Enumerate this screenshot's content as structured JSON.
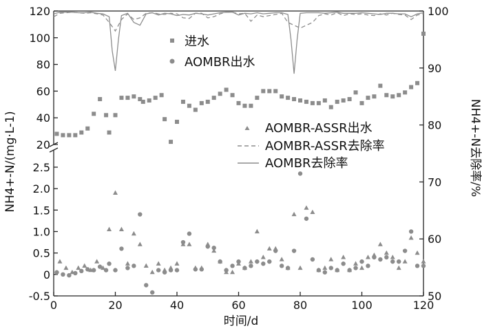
{
  "chart_data": {
    "type": "scatter",
    "xlabel": "时间/d",
    "ylabel_left": "NH4+-N/(mg·L-1)",
    "ylabel_right": "NH4+-N去除率/%",
    "xlim": [
      0,
      120
    ],
    "x_ticks": [
      "0",
      "20",
      "40",
      "60",
      "80",
      "100",
      "120"
    ],
    "left_upper_ticks": [
      "20",
      "40",
      "60",
      "80",
      "100",
      "120"
    ],
    "left_lower_ticks": [
      "-0.5",
      "0",
      "0.5",
      "1.0",
      "1.5",
      "2.0",
      "2.5"
    ],
    "right_ticks": [
      "50",
      "60",
      "70",
      "80",
      "90",
      "100"
    ],
    "ylim_left_upper": [
      20,
      120
    ],
    "ylim_left_lower": [
      -0.5,
      2.9
    ],
    "ylim_right": [
      50,
      100
    ],
    "axis_break": true,
    "grid": false,
    "legend_upper": [
      "进水",
      "AOMBR出水"
    ],
    "legend_lower": [
      "AOMBR-ASSR出水",
      "AOMBR-ASSR去除率",
      "AOMBR去除率"
    ],
    "series": [
      {
        "name": "进水",
        "marker": "square",
        "color": "#8c8c8c",
        "axis": "left_upper",
        "x": [
          1,
          3,
          5,
          7,
          9,
          11,
          13,
          15,
          17,
          18,
          20,
          22,
          24,
          26,
          28,
          29,
          31,
          33,
          35,
          36,
          38,
          40,
          42,
          44,
          46,
          48,
          50,
          52,
          54,
          56,
          58,
          60,
          62,
          64,
          66,
          68,
          70,
          72,
          74,
          76,
          78,
          80,
          82,
          84,
          86,
          88,
          90,
          92,
          94,
          96,
          98,
          100,
          102,
          104,
          106,
          108,
          110,
          112,
          114,
          116,
          118,
          120
        ],
        "y": [
          28,
          27,
          27,
          27,
          29,
          32,
          43,
          54,
          42,
          29,
          42,
          55,
          55,
          56,
          54,
          52,
          53,
          55,
          57,
          39,
          22,
          37,
          52,
          49,
          46,
          51,
          52,
          55,
          58,
          61,
          57,
          51,
          49,
          49,
          55,
          60,
          60,
          60,
          56,
          55,
          54,
          53,
          52,
          51,
          51,
          53,
          48,
          52,
          53,
          54,
          59,
          51,
          55,
          56,
          64,
          57,
          56,
          57,
          59,
          63,
          66,
          103
        ]
      },
      {
        "name": "AOMBR出水",
        "marker": "circle",
        "color": "#8c8c8c",
        "axis": "left_lower",
        "x": [
          1,
          3,
          5,
          7,
          9,
          11,
          13,
          15,
          17,
          18,
          20,
          22,
          24,
          26,
          28,
          30,
          32,
          34,
          36,
          38,
          40,
          42,
          44,
          46,
          48,
          50,
          52,
          54,
          56,
          58,
          60,
          62,
          64,
          66,
          68,
          70,
          72,
          74,
          76,
          78,
          80,
          82,
          84,
          86,
          88,
          90,
          92,
          94,
          96,
          98,
          100,
          102,
          104,
          106,
          108,
          110,
          112,
          114,
          116,
          118,
          120
        ],
        "y": [
          0.05,
          0.0,
          -0.02,
          0.03,
          0.08,
          0.12,
          0.1,
          0.18,
          0.1,
          0.25,
          0.1,
          0.6,
          0.15,
          0.2,
          1.4,
          -0.25,
          -0.42,
          0.1,
          0.05,
          0.1,
          0.1,
          0.75,
          0.95,
          0.12,
          0.12,
          0.65,
          0.62,
          0.3,
          0.1,
          0.2,
          0.3,
          0.15,
          0.2,
          0.3,
          0.25,
          0.3,
          0.55,
          0.2,
          0.15,
          0.55,
          2.35,
          1.3,
          0.35,
          0.1,
          0.05,
          0.15,
          0.1,
          0.25,
          0.1,
          0.15,
          0.3,
          0.2,
          0.4,
          0.35,
          0.4,
          0.3,
          0.3,
          0.55,
          1.0,
          0.2,
          0.2
        ]
      },
      {
        "name": "AOMBR-ASSR出水",
        "marker": "triangle",
        "color": "#8c8c8c",
        "axis": "left_lower",
        "x": [
          2,
          4,
          6,
          8,
          10,
          12,
          14,
          16,
          18,
          20,
          22,
          24,
          26,
          28,
          30,
          32,
          34,
          36,
          38,
          40,
          42,
          44,
          46,
          48,
          50,
          52,
          54,
          56,
          58,
          60,
          62,
          64,
          66,
          68,
          70,
          72,
          74,
          76,
          78,
          80,
          82,
          84,
          86,
          88,
          90,
          92,
          94,
          96,
          98,
          100,
          102,
          104,
          106,
          108,
          110,
          112,
          114,
          116,
          118,
          120
        ],
        "y": [
          0.3,
          0.15,
          0.05,
          0.15,
          0.2,
          0.1,
          0.3,
          0.15,
          1.05,
          1.9,
          1.05,
          0.25,
          0.95,
          0.7,
          0.2,
          0.05,
          0.25,
          0.1,
          0.15,
          0.25,
          0.7,
          0.7,
          0.15,
          0.15,
          0.7,
          0.55,
          0.3,
          0.05,
          0.05,
          0.25,
          0.15,
          0.3,
          1.0,
          0.4,
          0.6,
          0.6,
          0.35,
          0.15,
          1.4,
          0.15,
          1.55,
          1.45,
          0.1,
          0.15,
          0.35,
          0.1,
          0.4,
          0.1,
          0.25,
          0.15,
          0.4,
          0.45,
          0.7,
          0.5,
          0.4,
          0.15,
          0.3,
          0.85,
          0.5,
          0.3
        ]
      },
      {
        "name": "AOMBR-ASSR去除率",
        "line": "dashed",
        "color": "#8c8c8c",
        "axis": "right",
        "x": [
          0,
          2,
          4,
          6,
          8,
          10,
          12,
          14,
          16,
          18,
          20,
          22,
          24,
          26,
          28,
          30,
          32,
          34,
          36,
          38,
          40,
          42,
          44,
          46,
          48,
          50,
          52,
          54,
          56,
          58,
          60,
          62,
          64,
          66,
          68,
          70,
          72,
          74,
          76,
          78,
          80,
          82,
          84,
          86,
          88,
          90,
          92,
          94,
          96,
          98,
          100,
          102,
          104,
          106,
          108,
          110,
          112,
          114,
          116,
          118,
          120
        ],
        "y": [
          99.0,
          99.6,
          99.7,
          99.8,
          99.7,
          99.6,
          99.7,
          99.5,
          99.3,
          98.0,
          96.5,
          98.5,
          99.5,
          98.5,
          98.8,
          99.6,
          99.7,
          99.5,
          99.4,
          99.6,
          99.5,
          98.8,
          98.7,
          99.6,
          99.6,
          98.8,
          99.0,
          99.5,
          99.8,
          99.8,
          99.5,
          99.6,
          98.2,
          99.3,
          99.0,
          99.2,
          99.4,
          99.6,
          98.0,
          97.5,
          97.0,
          97.5,
          98.0,
          99.2,
          99.5,
          99.3,
          99.7,
          99.2,
          99.5,
          99.4,
          99.5,
          99.3,
          99.2,
          99.5,
          99.3,
          99.6,
          99.4,
          99.3,
          98.5,
          99.3,
          99.5
        ]
      },
      {
        "name": "AOMBR去除率",
        "line": "solid",
        "color": "#8c8c8c",
        "axis": "right",
        "x": [
          0,
          2,
          4,
          6,
          8,
          10,
          12,
          14,
          16,
          18,
          19,
          20,
          21,
          22,
          24,
          26,
          28,
          30,
          32,
          34,
          36,
          38,
          40,
          42,
          44,
          46,
          48,
          50,
          52,
          54,
          56,
          58,
          60,
          62,
          64,
          66,
          68,
          70,
          72,
          74,
          76,
          77,
          78,
          79,
          80,
          82,
          84,
          86,
          88,
          90,
          92,
          94,
          96,
          98,
          100,
          102,
          104,
          106,
          108,
          110,
          112,
          114,
          116,
          118,
          120
        ],
        "y": [
          99.5,
          99.8,
          99.8,
          99.8,
          99.7,
          99.7,
          99.8,
          99.6,
          99.5,
          99.0,
          93.0,
          89.5,
          95.0,
          99.2,
          99.6,
          98.0,
          97.5,
          99.5,
          99.7,
          99.3,
          99.6,
          99.5,
          99.2,
          99.4,
          99.3,
          99.6,
          99.5,
          99.3,
          99.5,
          99.7,
          99.8,
          99.8,
          99.3,
          99.6,
          99.5,
          99.7,
          99.5,
          99.6,
          99.7,
          99.7,
          99.4,
          95.0,
          89.0,
          95.0,
          99.6,
          99.7,
          99.7,
          99.7,
          99.6,
          99.7,
          99.8,
          99.6,
          99.6,
          99.6,
          99.7,
          99.6,
          99.5,
          99.4,
          99.6,
          99.6,
          99.5,
          99.5,
          99.0,
          99.5,
          99.7
        ]
      }
    ]
  }
}
